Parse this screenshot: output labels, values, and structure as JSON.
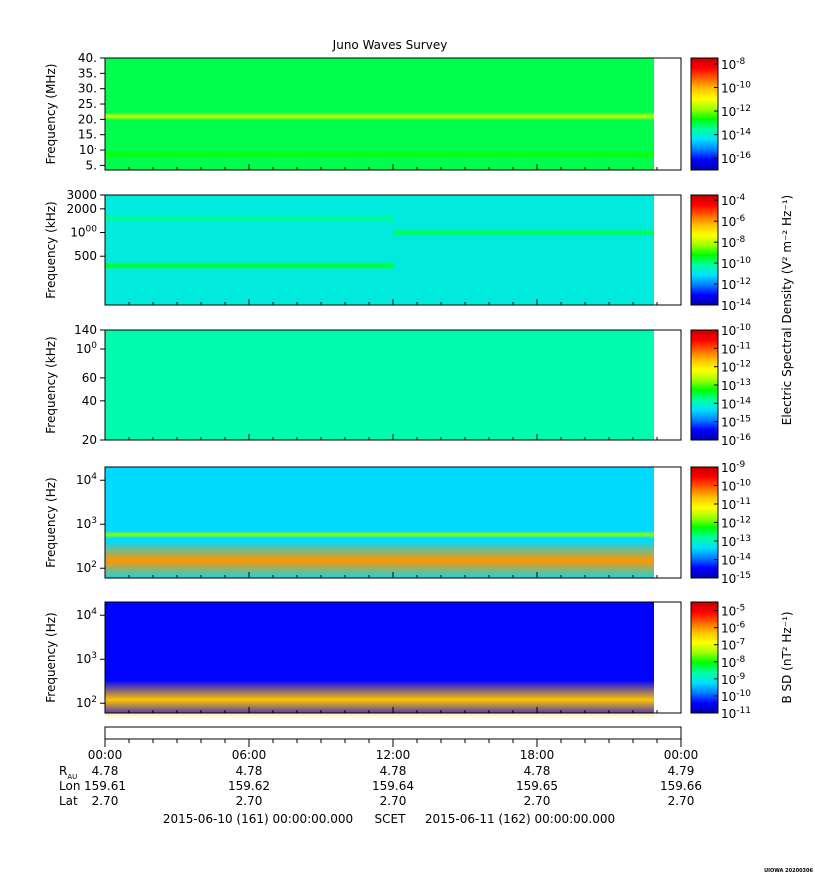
{
  "chart_data": {
    "type": "heatmap",
    "title": "Juno Waves Survey",
    "colormap": [
      "#0000b0",
      "#0000ff",
      "#0080ff",
      "#00e0ff",
      "#00ffa0",
      "#00ff00",
      "#a0ff00",
      "#ffff00",
      "#ffc000",
      "#ff6000",
      "#ff0000",
      "#c00000"
    ],
    "time_axis": {
      "start": "2015-06-10T00:00",
      "end": "2015-06-11T00:00",
      "tick_labels": [
        "00:00",
        "06:00",
        "12:00",
        "18:00",
        "00:00"
      ],
      "rows": [
        {
          "label": "R",
          "label_sub": "AU",
          "values": [
            "4.78",
            "4.78",
            "4.78",
            "4.78",
            "4.79"
          ]
        },
        {
          "label": "Lon",
          "values": [
            "159.61",
            "159.62",
            "159.64",
            "159.65",
            "159.66"
          ]
        },
        {
          "label": "Lat",
          "values": [
            "2.70",
            "2.70",
            "2.70",
            "2.70",
            "2.70"
          ]
        }
      ],
      "footer_start": "2015-06-10 (161) 00:00:00.000",
      "footer_mid": "SCET",
      "footer_end": "2015-06-11 (162) 00:00:00.000"
    },
    "panels": [
      {
        "ylabel": "Frequency (MHz)",
        "yscale": "linear",
        "ylim": [
          3.5,
          40
        ],
        "yticks": [
          "40.",
          "35.",
          "30.",
          "25.",
          "20.",
          "15.",
          "10.",
          "5."
        ],
        "ytick_values": [
          40,
          35,
          30,
          25,
          20,
          15,
          10,
          5
        ],
        "color_range_exp": [
          -17,
          -7.5
        ],
        "colorbar_ticks": [
          "-8",
          "-10",
          "-12",
          "-14",
          "-16"
        ],
        "colorbar_tick_exps": [
          -8,
          -10,
          -12,
          -14,
          -16
        ],
        "colorbar_label": "",
        "background_exp": -13.1,
        "bands": [
          {
            "freq": 21,
            "exp": -11.4
          },
          {
            "freq": 8.5,
            "exp": -12.6
          }
        ]
      },
      {
        "ylabel": "Frequency (kHz)",
        "yscale": "log",
        "ylim": [
          120,
          3000
        ],
        "yticks": [
          "3000",
          "2000",
          "1000",
          "500"
        ],
        "ytick_values": [
          3000,
          2000,
          1000,
          500
        ],
        "color_range_exp": [
          -14,
          -3.5
        ],
        "colorbar_ticks": [
          "-4",
          "-6",
          "-8",
          "-10",
          "-12",
          "-14"
        ],
        "colorbar_tick_exps": [
          -4,
          -6,
          -8,
          -10,
          -12,
          -14
        ],
        "colorbar_label": "Electric Spectral Density (V² m⁻² Hz⁻¹)",
        "background_exp": -10.8,
        "bands": [
          {
            "freq": 380,
            "exp": -9.3,
            "until": "12:00"
          },
          {
            "freq": 1500,
            "exp": -10.0,
            "until": "12:00"
          },
          {
            "freq": 1000,
            "exp": -9.6,
            "from": "12:00"
          }
        ]
      },
      {
        "ylabel": "Frequency (kHz)",
        "yscale": "log",
        "ylim": [
          20,
          140
        ],
        "yticks": [
          "140",
          "100",
          "60",
          "40",
          "20"
        ],
        "ytick_values": [
          140,
          100,
          60,
          40,
          20
        ],
        "color_range_exp": [
          -16,
          -10
        ],
        "colorbar_ticks": [
          "-10",
          "-11",
          "-12",
          "-13",
          "-14",
          "-15",
          "-16"
        ],
        "colorbar_tick_exps": [
          -10,
          -11,
          -12,
          -13,
          -14,
          -15,
          -16
        ],
        "colorbar_label": "",
        "background_exp": -13.9,
        "bands": []
      },
      {
        "ylabel": "Frequency (Hz)",
        "yscale": "log",
        "ylim": [
          60,
          20000
        ],
        "yticks": [
          "10⁴",
          "10³",
          "10²"
        ],
        "ytick_values": [
          10000,
          1000,
          100
        ],
        "color_range_exp": [
          -15,
          -9
        ],
        "colorbar_ticks": [
          "-9",
          "-10",
          "-11",
          "-12",
          "-13",
          "-14",
          "-15"
        ],
        "colorbar_tick_exps": [
          -9,
          -10,
          -11,
          -12,
          -13,
          -14,
          -15
        ],
        "colorbar_label": "",
        "background_exp": -13.4,
        "bands": [
          {
            "freq": 580,
            "exp": -11.8
          },
          {
            "freq": 150,
            "exp": -10.4
          }
        ]
      },
      {
        "ylabel": "Frequency (Hz)",
        "yscale": "log",
        "ylim": [
          60,
          20000
        ],
        "yticks": [
          "10⁴",
          "10³",
          "10²"
        ],
        "ytick_values": [
          10000,
          1000,
          100
        ],
        "color_range_exp": [
          -11,
          -4.5
        ],
        "colorbar_ticks": [
          "-5",
          "-6",
          "-7",
          "-8",
          "-9",
          "-10",
          "-11"
        ],
        "colorbar_tick_exps": [
          -5,
          -6,
          -7,
          -8,
          -9,
          -10,
          -11
        ],
        "colorbar_label": "B SD (nT² Hz⁻¹)",
        "background_exp": -10.4,
        "bands": [
          {
            "freq": 120,
            "exp": -6.3
          }
        ]
      }
    ]
  },
  "footer": {
    "credit": "UIOWA 20200306"
  }
}
